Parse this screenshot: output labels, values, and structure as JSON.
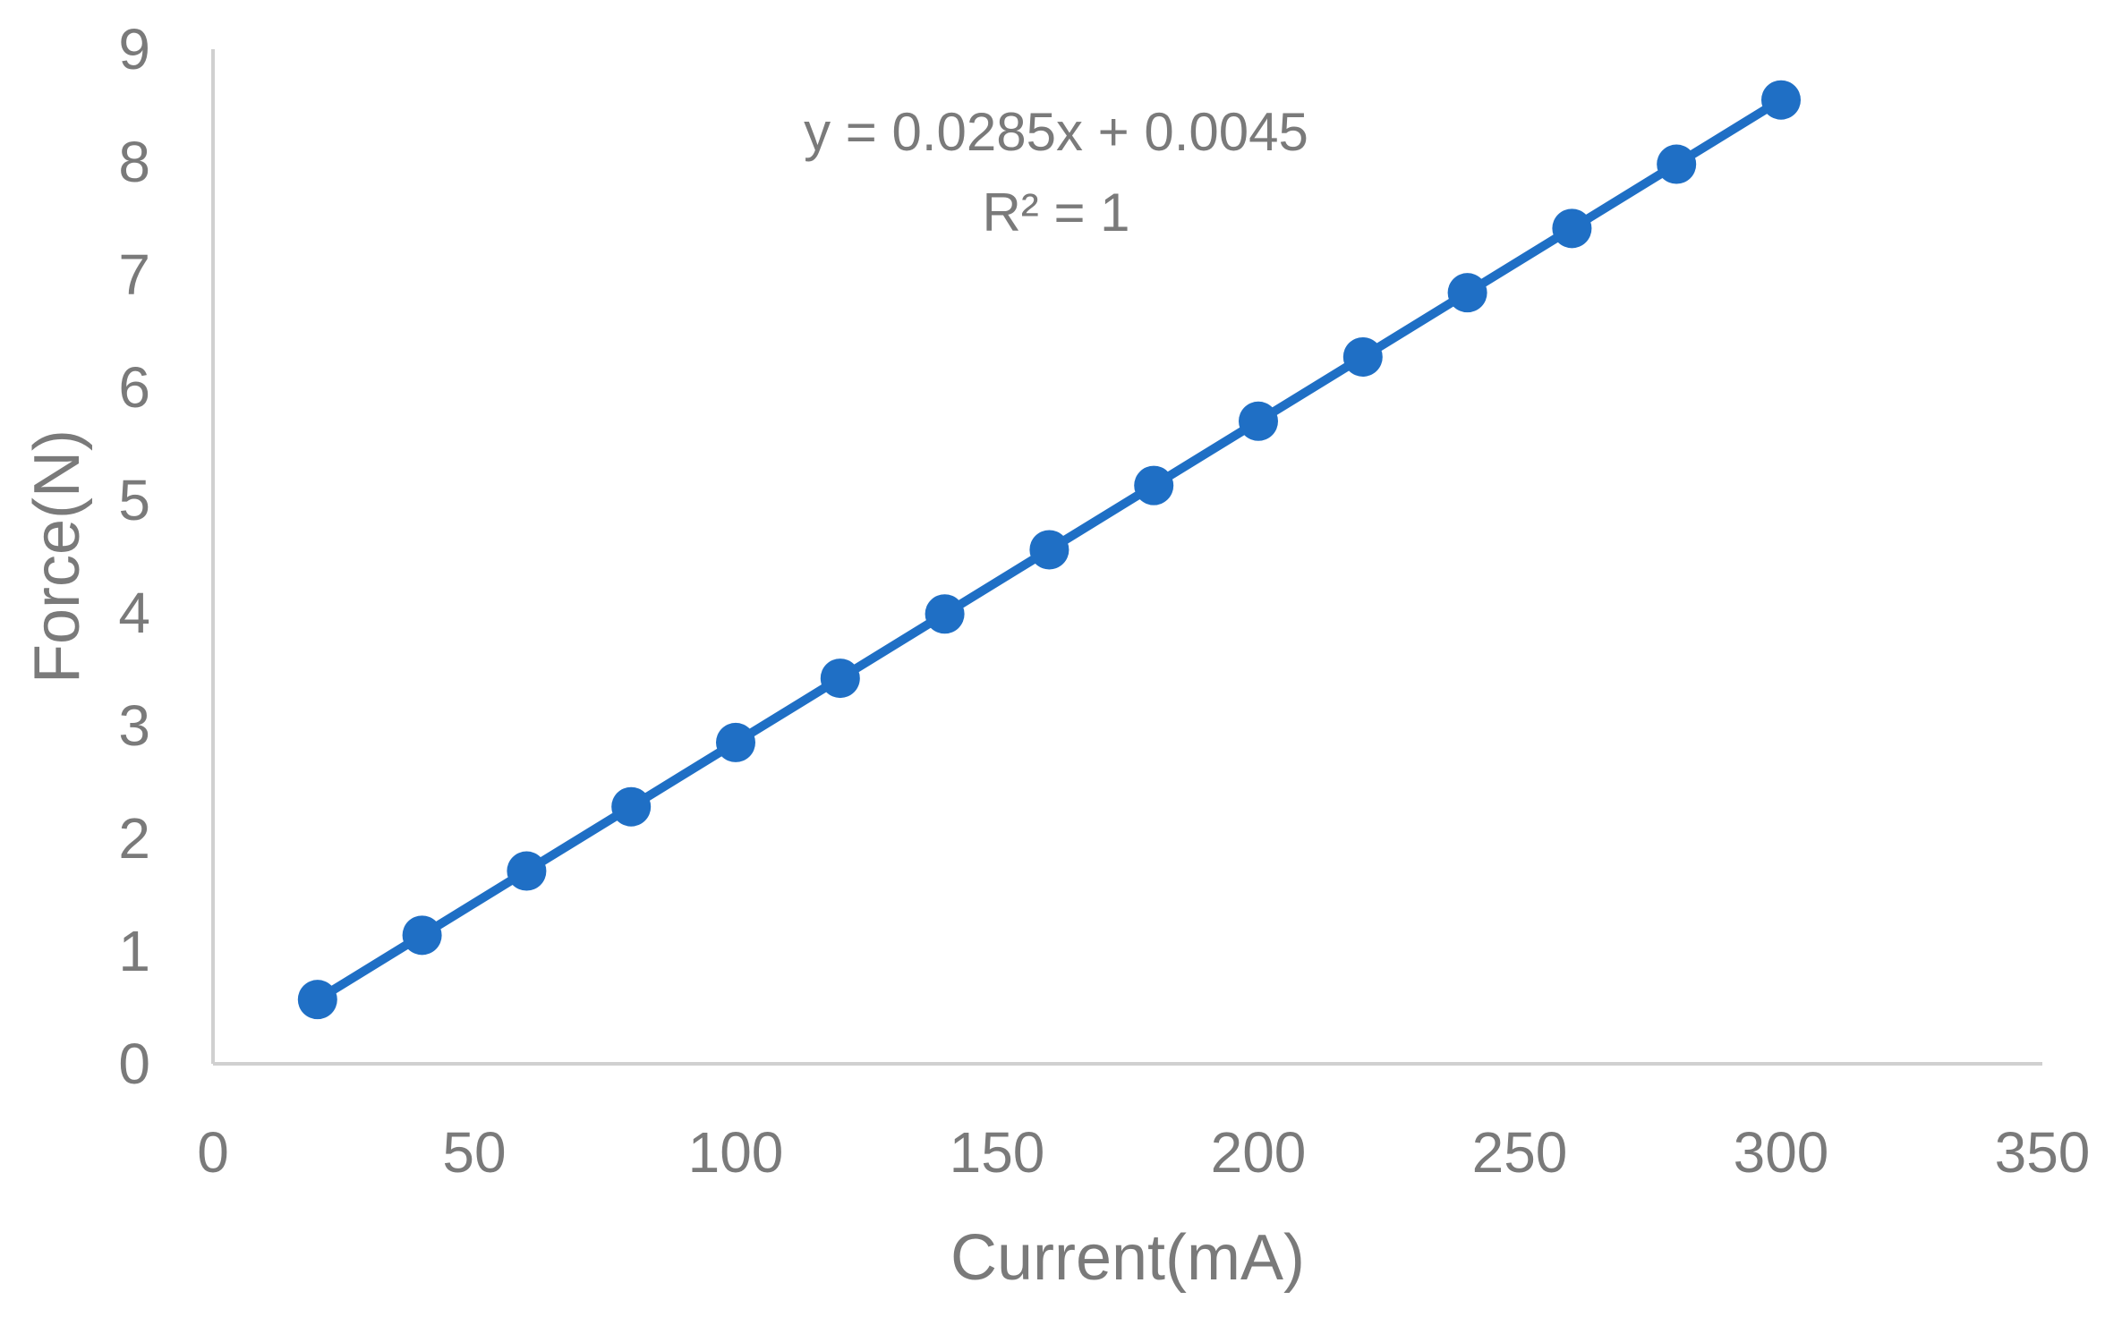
{
  "chart_data": {
    "type": "scatter",
    "title": "",
    "xlabel": "Current(mA)",
    "ylabel": "Force(N)",
    "xlim": [
      0,
      350
    ],
    "ylim": [
      0,
      9
    ],
    "x_ticks": [
      "0",
      "50",
      "100",
      "150",
      "200",
      "250",
      "300",
      "350"
    ],
    "y_ticks": [
      "0",
      "1",
      "2",
      "3",
      "4",
      "5",
      "6",
      "7",
      "8",
      "9"
    ],
    "grid": false,
    "legend": "none",
    "series": [
      {
        "color": "#1f6fc5",
        "x": [
          20,
          40,
          60,
          80,
          100,
          120,
          140,
          160,
          180,
          200,
          220,
          240,
          260,
          280,
          300
        ],
        "y": [
          0.57,
          1.14,
          1.71,
          2.28,
          2.85,
          3.42,
          3.99,
          4.56,
          5.13,
          5.7,
          6.27,
          6.84,
          7.41,
          7.98,
          8.55
        ]
      }
    ],
    "annotations": {
      "equation": "y = 0.0285x + 0.0045",
      "r_squared": "R² = 1"
    }
  }
}
